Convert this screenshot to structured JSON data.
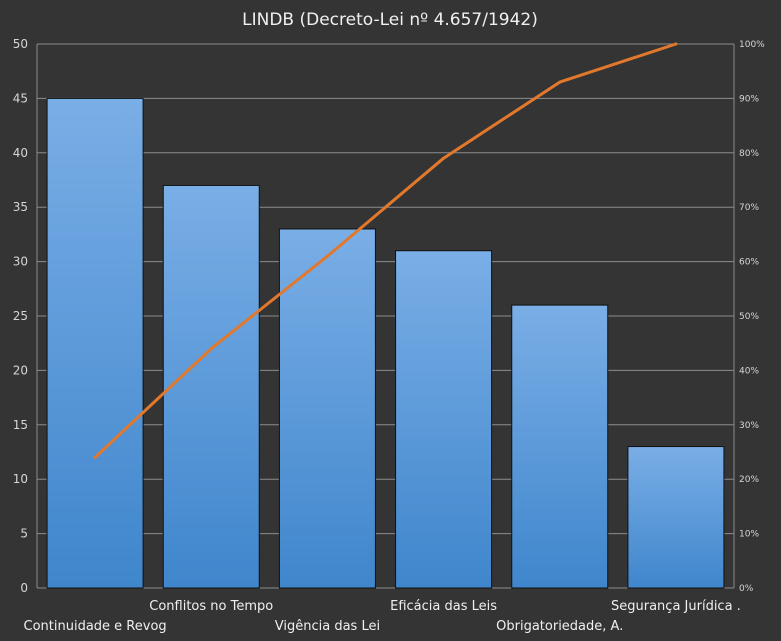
{
  "chart_data": {
    "type": "bar",
    "title": "LINDB  (Decreto-Lei  nº 4.657/1942)",
    "categories": [
      "Continuidade  e Revog",
      "Conflitos no Tempo",
      "Vigência das Lei",
      "Eficácia das Leis",
      "Obrigatoriedade, A.",
      "Segurança Jurídica ."
    ],
    "series": [
      {
        "values": [
          45,
          37,
          33,
          31,
          26,
          13
        ],
        "kind": "bar"
      },
      {
        "values": [
          24,
          44,
          61,
          79,
          93,
          100
        ],
        "kind": "line",
        "axis": "right"
      }
    ],
    "y_left": {
      "lim": [
        0,
        50
      ],
      "ticks": [
        "0",
        "5",
        "10",
        "15",
        "20",
        "25",
        "30",
        "35",
        "40",
        "45",
        "50"
      ]
    },
    "y_right": {
      "lim": [
        0,
        100
      ],
      "ticks": [
        "0%",
        "10%",
        "20%",
        "30%",
        "40%",
        "50%",
        "60%",
        "70%",
        "80%",
        "90%",
        "100%"
      ]
    },
    "grid": true,
    "colors": {
      "background": "#343434",
      "bar_top": "#7aaee6",
      "bar_bottom": "#3f86cc",
      "line": "#e2782c",
      "grid": "#8c8c8c"
    }
  }
}
